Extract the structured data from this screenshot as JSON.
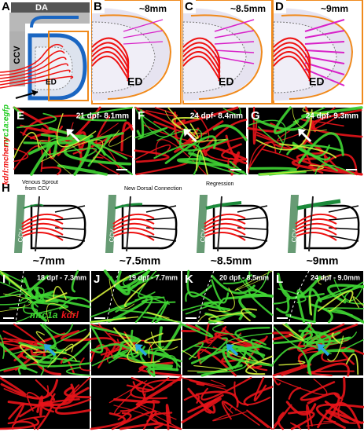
{
  "top_row": {
    "schematic": {
      "letter": "A",
      "da": "DA",
      "ccv": "CCV",
      "ed": "ED"
    },
    "stages": [
      {
        "letter": "B",
        "size": "~8mm",
        "region": "ED"
      },
      {
        "letter": "C",
        "size": "~8.5mm",
        "region": "ED"
      },
      {
        "letter": "D",
        "size": "~9mm",
        "region": "ED"
      }
    ]
  },
  "middle_row": {
    "channels": [
      "mrc1a:egfp",
      "kdrl:mcherry"
    ],
    "panels": [
      {
        "letter": "E",
        "caption": "21 dpf- 8.1mm"
      },
      {
        "letter": "F",
        "caption": "24 dpf- 8.4mm"
      },
      {
        "letter": "G",
        "caption": "24 dpf- 9.3mm"
      }
    ]
  },
  "schematics": {
    "letter": "H",
    "annotations": [
      [
        "Venous Sprout",
        "from CCV"
      ],
      [
        "New Dorsal Connection"
      ],
      [
        "Regression"
      ]
    ],
    "stages": [
      {
        "vessel": "CCV",
        "size": "~7mm"
      },
      {
        "vessel": "CCV",
        "size": "~7.5mm"
      },
      {
        "vessel": "CCV",
        "size": "~8.5mm"
      },
      {
        "vessel": "CCV",
        "size": "~9mm"
      }
    ]
  },
  "bottom_row": {
    "channels": [
      "mrc1a",
      "kdrl"
    ],
    "panels": [
      {
        "letter": "I",
        "caption": "18 dpf - 7.3mm"
      },
      {
        "letter": "J",
        "caption": "19 dpf - 7.7mm"
      },
      {
        "letter": "K",
        "caption": "20 dpf - 8.5mm"
      },
      {
        "letter": "L",
        "caption": "24 dpf - 9.0mm"
      }
    ]
  }
}
